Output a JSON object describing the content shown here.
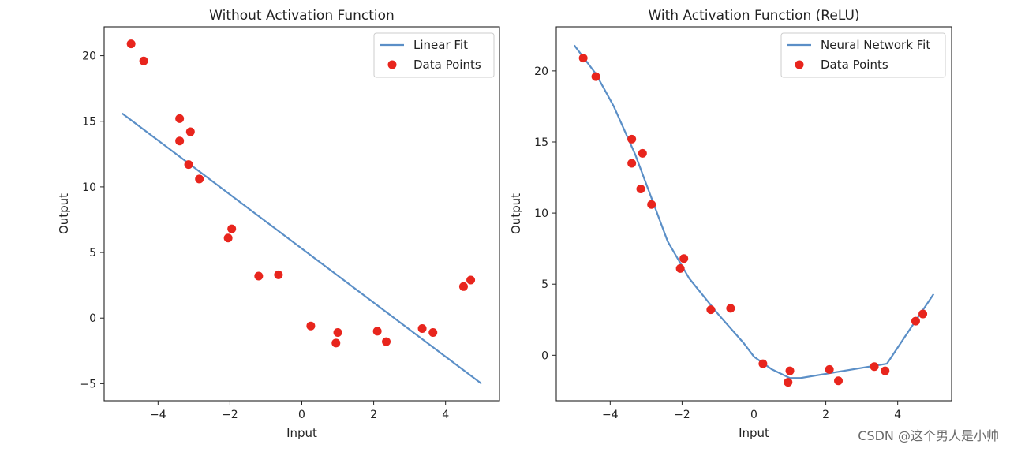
{
  "watermark": "CSDN @这个男人是小帅",
  "colors": {
    "line": "#5b8fc7",
    "points": "#e8251d",
    "axis": "#222222"
  },
  "chart_data": [
    {
      "type": "scatter",
      "title": "Without Activation Function",
      "xlabel": "Input",
      "ylabel": "Output",
      "xlim": [
        -5.5,
        5.5
      ],
      "ylim": [
        -6.3,
        22.2
      ],
      "xticks": [
        -4,
        -2,
        0,
        2,
        4
      ],
      "yticks": [
        -5,
        0,
        5,
        10,
        15,
        20
      ],
      "legend": {
        "position": "top-right",
        "line_label": "Linear Fit",
        "points_label": "Data Points"
      },
      "line": {
        "name": "Linear Fit",
        "x": [
          -5,
          5
        ],
        "y": [
          15.6,
          -5.0
        ]
      },
      "points": {
        "name": "Data Points",
        "x": [
          -4.75,
          -4.4,
          -3.4,
          -3.4,
          -3.1,
          -3.15,
          -2.85,
          -2.05,
          -1.95,
          -1.2,
          -0.65,
          0.25,
          0.95,
          1.0,
          2.1,
          2.35,
          3.35,
          3.65,
          4.5,
          4.7
        ],
        "y": [
          20.9,
          19.6,
          15.2,
          13.5,
          14.2,
          11.7,
          10.6,
          6.1,
          6.8,
          3.2,
          3.3,
          -0.6,
          -1.9,
          -1.1,
          -1.0,
          -1.8,
          -0.8,
          -1.1,
          2.4,
          2.9
        ]
      }
    },
    {
      "type": "scatter",
      "title": "With Activation Function (ReLU)",
      "xlabel": "Input",
      "ylabel": "Output",
      "xlim": [
        -5.5,
        5.5
      ],
      "ylim": [
        -3.2,
        23.1
      ],
      "xticks": [
        -4,
        -2,
        0,
        2,
        4
      ],
      "yticks": [
        0,
        5,
        10,
        15,
        20
      ],
      "legend": {
        "position": "top-right",
        "line_label": "Neural Network Fit",
        "points_label": "Data Points"
      },
      "line": {
        "name": "Neural Network Fit",
        "x": [
          -5.0,
          -4.4,
          -3.9,
          -3.3,
          -2.4,
          -1.8,
          -1.0,
          -0.3,
          0.0,
          0.5,
          1.0,
          1.3,
          3.7,
          4.2,
          5.0
        ],
        "y": [
          21.8,
          19.8,
          17.5,
          14.1,
          8.0,
          5.4,
          2.9,
          0.9,
          -0.1,
          -1.0,
          -1.6,
          -1.6,
          -0.6,
          1.3,
          4.3
        ]
      },
      "points": {
        "name": "Data Points",
        "x": [
          -4.75,
          -4.4,
          -3.4,
          -3.4,
          -3.1,
          -3.15,
          -2.85,
          -2.05,
          -1.95,
          -1.2,
          -0.65,
          0.25,
          0.95,
          1.0,
          2.1,
          2.35,
          3.35,
          3.65,
          4.5,
          4.7
        ],
        "y": [
          20.9,
          19.6,
          15.2,
          13.5,
          14.2,
          11.7,
          10.6,
          6.1,
          6.8,
          3.2,
          3.3,
          -0.6,
          -1.9,
          -1.1,
          -1.0,
          -1.8,
          -0.8,
          -1.1,
          2.4,
          2.9
        ]
      }
    }
  ]
}
